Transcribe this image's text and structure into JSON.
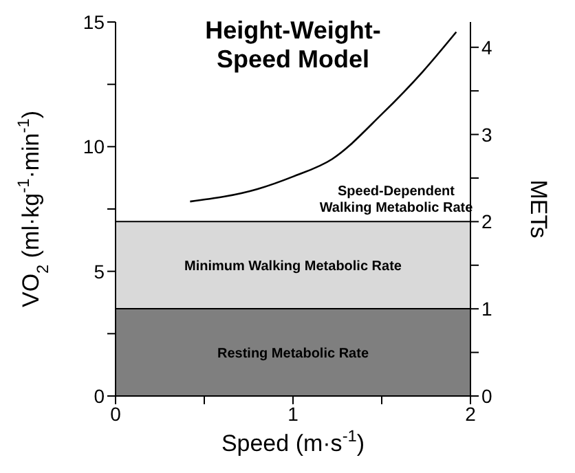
{
  "chart_data": {
    "type": "line",
    "title": "Height-Weight-Speed Model",
    "xlabel": "Speed (m·s$^{-1}$)",
    "ylabel": "VO$_{2}$ (ml·kg$^{-1}$·min$^{-1}$)",
    "y2label": "METs",
    "xlim": [
      0,
      2
    ],
    "xticks": [
      0,
      {
        "value": 0.5,
        "label": null
      },
      1,
      {
        "value": 1.5,
        "label": null
      },
      2
    ],
    "ylim": [
      0,
      15
    ],
    "yticks": [
      0,
      {
        "value": 2.5,
        "label": null
      },
      5,
      {
        "value": 7.5,
        "label": null
      },
      10,
      {
        "value": 12.5,
        "label": null
      },
      15
    ],
    "y2lim": [
      0,
      4.29
    ],
    "y2ticks": [
      0,
      {
        "value": 0.5,
        "label": null
      },
      1,
      {
        "value": 1.5,
        "label": null
      },
      2,
      {
        "value": 2.5,
        "label": null
      },
      3,
      {
        "value": 3.5,
        "label": null
      },
      4
    ],
    "series": [
      {
        "color": "#000000",
        "x": [
          0.42,
          0.8,
          1.0,
          1.22,
          1.5,
          1.73,
          1.92
        ],
        "values": [
          7.8,
          8.3,
          8.8,
          9.5,
          11.3,
          13.0,
          14.6
        ]
      }
    ],
    "bands": [
      {
        "axis": "y",
        "from": 0,
        "to": 3.5,
        "label": "Resting Metabolic Rate",
        "color": "#7f7f7f"
      },
      {
        "axis": "y",
        "from": 3.5,
        "to": 7,
        "label": "Minimum Walking Metabolic Rate",
        "color": "#d9d9d9"
      }
    ],
    "annotations": [
      "Speed-Dependent Walking Metabolic Rate"
    ],
    "grid": false,
    "legend": false,
    "marker": "none",
    "line_style": "solid"
  }
}
